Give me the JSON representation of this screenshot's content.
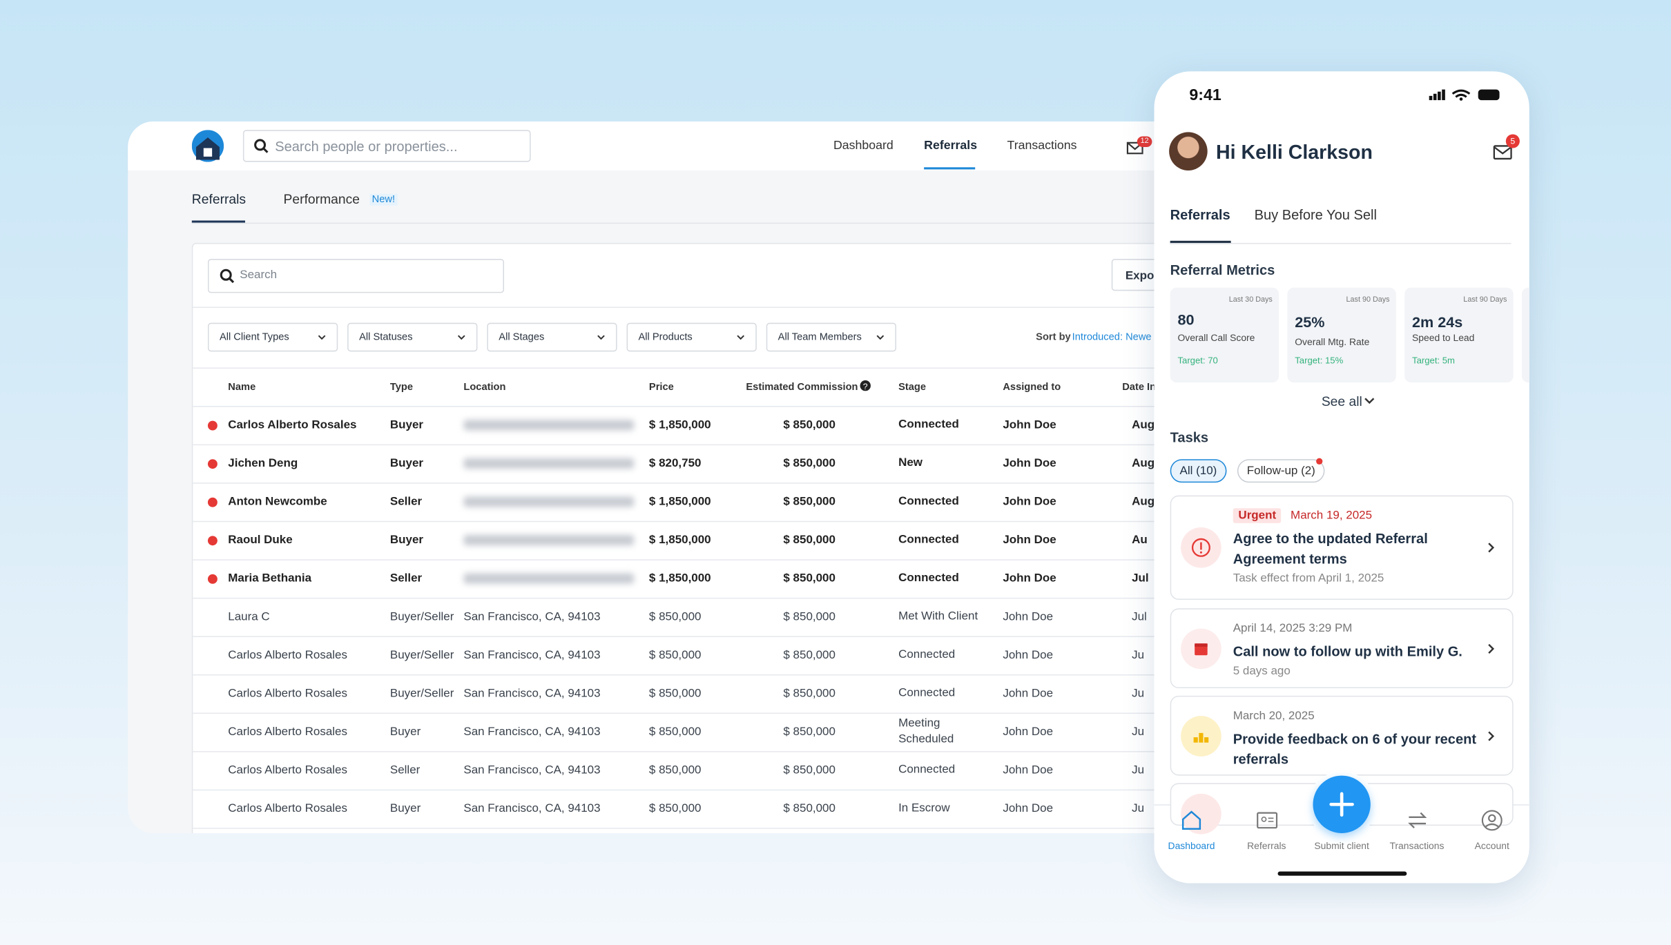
{
  "header": {
    "search_placeholder": "Search people or properties...",
    "nav": [
      "Dashboard",
      "Referrals",
      "Transactions"
    ],
    "active_nav": 1,
    "mail_badge": "12"
  },
  "tabs": {
    "items": [
      "Referrals",
      "Performance"
    ],
    "new_badge": "New!"
  },
  "toolbar": {
    "search": "Search",
    "export": "Expor",
    "filters": [
      "All Client Types",
      "All Statuses",
      "All Stages",
      "All Products",
      "All Team Members"
    ],
    "sort_label": "Sort by",
    "sort_value": "Introduced: Newe"
  },
  "table": {
    "columns": [
      "Name",
      "Type",
      "Location",
      "Price",
      "Estimated Commission",
      "Stage",
      "Assigned to",
      "Date In"
    ],
    "rows": [
      {
        "unread": true,
        "cells": [
          "Carlos Alberto Rosales",
          "Buyer",
          null,
          "$ 1,850,000",
          "$ 850,000",
          "Connected",
          "John Doe",
          "Aug"
        ]
      },
      {
        "unread": true,
        "cells": [
          "Jichen Deng",
          "Buyer",
          null,
          "$ 820,750",
          "$ 850,000",
          "New",
          "John Doe",
          "Aug"
        ]
      },
      {
        "unread": true,
        "cells": [
          "Anton Newcombe",
          "Seller",
          null,
          "$ 1,850,000",
          "$ 850,000",
          "Connected",
          "John Doe",
          "Aug"
        ]
      },
      {
        "unread": true,
        "cells": [
          "Raoul Duke",
          "Buyer",
          null,
          "$ 1,850,000",
          "$ 850,000",
          "Connected",
          "John Doe",
          "Au"
        ]
      },
      {
        "unread": true,
        "cells": [
          "Maria Bethania",
          "Seller",
          null,
          "$ 1,850,000",
          "$ 850,000",
          "Connected",
          "John Doe",
          "Jul"
        ]
      },
      {
        "unread": false,
        "cells": [
          "Laura C",
          "Buyer/Seller",
          "San Francisco, CA, 94103",
          "$ 850,000",
          "$ 850,000",
          "Met With Client",
          "John Doe",
          "Jul"
        ]
      },
      {
        "unread": false,
        "cells": [
          "Carlos Alberto Rosales",
          "Buyer/Seller",
          "San Francisco, CA, 94103",
          "$ 850,000",
          "$ 850,000",
          "Connected",
          "John Doe",
          "Ju"
        ]
      },
      {
        "unread": false,
        "cells": [
          "Carlos Alberto Rosales",
          "Buyer/Seller",
          "San Francisco, CA, 94103",
          "$ 850,000",
          "$ 850,000",
          "Connected",
          "John Doe",
          "Ju"
        ]
      },
      {
        "unread": false,
        "cells": [
          "Carlos Alberto Rosales",
          "Buyer",
          "San Francisco, CA, 94103",
          "$ 850,000",
          "$ 850,000",
          "Meeting Scheduled",
          "John Doe",
          "Ju"
        ]
      },
      {
        "unread": false,
        "cells": [
          "Carlos Alberto Rosales",
          "Seller",
          "San Francisco, CA, 94103",
          "$ 850,000",
          "$ 850,000",
          "Connected",
          "John Doe",
          "Ju"
        ]
      },
      {
        "unread": false,
        "cells": [
          "Carlos Alberto Rosales",
          "Buyer",
          "San Francisco, CA, 94103",
          "$ 850,000",
          "$ 850,000",
          "In Escrow",
          "John Doe",
          "Ju"
        ]
      }
    ]
  },
  "phone": {
    "time": "9:41",
    "greeting": "Hi Kelli Clarkson",
    "mail_badge": "5",
    "tabs": [
      "Referrals",
      "Buy Before You Sell"
    ],
    "metrics_title": "Referral Metrics",
    "metrics": [
      {
        "period": "Last 30 Days",
        "value": "80",
        "label": "Overall Call Score",
        "target": "Target: 70"
      },
      {
        "period": "Last 90 Days",
        "value": "25%",
        "label": "Overall Mtg. Rate",
        "target": "Target: 15%"
      },
      {
        "period": "Last 90 Days",
        "value": "2m 24s",
        "label": "Speed to Lead",
        "target": "Target: 5m"
      }
    ],
    "see_all": "See all",
    "tasks_title": "Tasks",
    "task_filters": [
      "All (10)",
      "Follow-up (2)"
    ],
    "tasks": [
      {
        "tag": "Urgent",
        "date": "March 19, 2025",
        "title": "Agree to the updated Referral Agreement terms",
        "sub": "Task effect from April 1, 2025"
      },
      {
        "date": "April 14, 2025 3:29 PM",
        "title": "Call now to follow up with Emily G.",
        "sub": "5 days ago"
      },
      {
        "date": "March 20, 2025",
        "title": "Provide feedback on 6 of your recent referrals"
      }
    ],
    "nav": [
      "Dashboard",
      "Referrals",
      "Submit client",
      "Transactions",
      "Account"
    ]
  }
}
